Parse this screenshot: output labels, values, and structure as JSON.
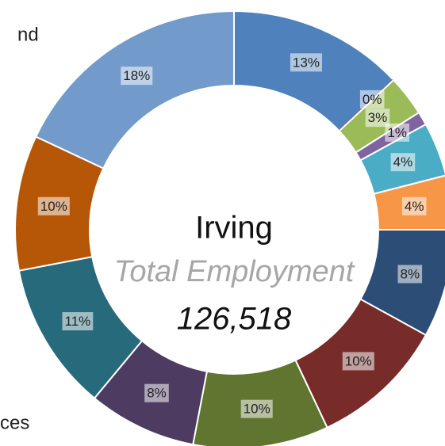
{
  "chart_data": {
    "type": "donut",
    "title": "Irving",
    "subtitle": "Total Employment",
    "total_label": "126,518",
    "annotations": [
      "nd",
      "ces"
    ],
    "values": [
      13,
      0,
      3,
      1,
      4,
      4,
      8,
      10,
      10,
      8,
      11,
      10,
      18
    ],
    "value_labels": [
      "13%",
      "0%",
      "3%",
      "1%",
      "4%",
      "4%",
      "8%",
      "10%",
      "10%",
      "8%",
      "11%",
      "10%",
      "18%"
    ],
    "colors": [
      "#4f81bd",
      "#c0504d",
      "#9bbb59",
      "#8064a2",
      "#4bacc6",
      "#f79646",
      "#2c4d75",
      "#772c2a",
      "#5f7530",
      "#4d3b62",
      "#276a7c",
      "#b65708",
      "#729aca"
    ]
  }
}
